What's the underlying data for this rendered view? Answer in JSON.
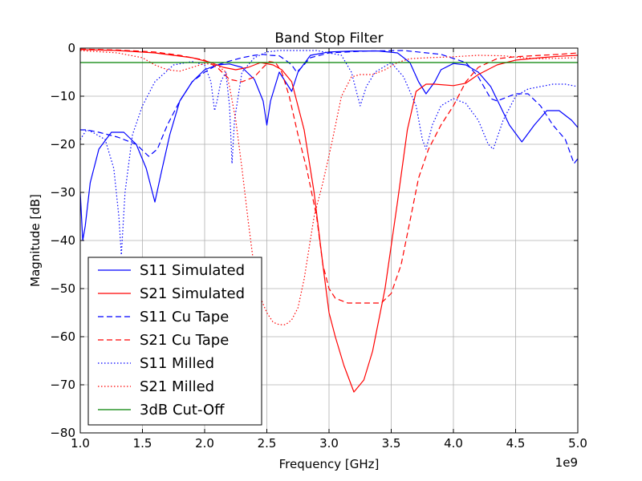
{
  "chart_data": {
    "type": "line",
    "title": "Band Stop Filter",
    "xlabel": "Frequency [GHz]",
    "ylabel": "Magnitude [dB]",
    "x_offset_label": "1e9",
    "xlim": [
      1.0,
      5.0
    ],
    "ylim": [
      -80,
      0
    ],
    "x_ticks": [
      1.0,
      1.5,
      2.0,
      2.5,
      3.0,
      3.5,
      4.0,
      4.5,
      5.0
    ],
    "x_tick_labels": [
      "1.0",
      "1.5",
      "2.0",
      "2.5",
      "3.0",
      "3.5",
      "4.0",
      "4.5",
      "5.0"
    ],
    "y_ticks": [
      0,
      -10,
      -20,
      -30,
      -40,
      -50,
      -60,
      -70,
      -80
    ],
    "y_tick_labels": [
      "0",
      "−10",
      "−20",
      "−30",
      "−40",
      "−50",
      "−60",
      "−70",
      "−80"
    ],
    "grid": true,
    "legend_position": "lower-left",
    "series": [
      {
        "name": "S11 Simulated",
        "color": "#0000ff",
        "dash": "solid",
        "points": [
          [
            1.0,
            -30
          ],
          [
            1.02,
            -40
          ],
          [
            1.04,
            -37
          ],
          [
            1.08,
            -28
          ],
          [
            1.15,
            -21
          ],
          [
            1.25,
            -17.5
          ],
          [
            1.35,
            -17.5
          ],
          [
            1.45,
            -20
          ],
          [
            1.53,
            -25
          ],
          [
            1.6,
            -32
          ],
          [
            1.65,
            -26
          ],
          [
            1.72,
            -18
          ],
          [
            1.8,
            -11
          ],
          [
            1.9,
            -7
          ],
          [
            2.0,
            -4.5
          ],
          [
            2.1,
            -3.5
          ],
          [
            2.2,
            -3.3
          ],
          [
            2.3,
            -4
          ],
          [
            2.4,
            -6.5
          ],
          [
            2.47,
            -11
          ],
          [
            2.5,
            -16
          ],
          [
            2.53,
            -11
          ],
          [
            2.6,
            -5
          ],
          [
            2.7,
            -9
          ],
          [
            2.75,
            -5
          ],
          [
            2.85,
            -1.5
          ],
          [
            3.0,
            -0.8
          ],
          [
            3.2,
            -0.6
          ],
          [
            3.4,
            -0.6
          ],
          [
            3.55,
            -1
          ],
          [
            3.65,
            -3
          ],
          [
            3.72,
            -7
          ],
          [
            3.78,
            -9.5
          ],
          [
            3.85,
            -7
          ],
          [
            3.9,
            -4.5
          ],
          [
            4.0,
            -3.2
          ],
          [
            4.1,
            -3.5
          ],
          [
            4.2,
            -5
          ],
          [
            4.3,
            -8
          ],
          [
            4.45,
            -16
          ],
          [
            4.55,
            -19.5
          ],
          [
            4.65,
            -16
          ],
          [
            4.75,
            -13
          ],
          [
            4.85,
            -13
          ],
          [
            4.95,
            -15
          ],
          [
            5.0,
            -16.5
          ]
        ]
      },
      {
        "name": "S21 Simulated",
        "color": "#ff0000",
        "dash": "solid",
        "points": [
          [
            1.0,
            -0.3
          ],
          [
            1.3,
            -0.5
          ],
          [
            1.6,
            -1
          ],
          [
            1.9,
            -2
          ],
          [
            2.05,
            -3
          ],
          [
            2.15,
            -4
          ],
          [
            2.25,
            -4.5
          ],
          [
            2.35,
            -4
          ],
          [
            2.45,
            -3
          ],
          [
            2.55,
            -3.5
          ],
          [
            2.62,
            -4.5
          ],
          [
            2.7,
            -7
          ],
          [
            2.8,
            -17
          ],
          [
            2.88,
            -30
          ],
          [
            2.95,
            -45
          ],
          [
            3.0,
            -55
          ],
          [
            3.05,
            -60
          ],
          [
            3.12,
            -66
          ],
          [
            3.2,
            -71.5
          ],
          [
            3.28,
            -69
          ],
          [
            3.35,
            -63
          ],
          [
            3.45,
            -50
          ],
          [
            3.55,
            -32
          ],
          [
            3.63,
            -17
          ],
          [
            3.7,
            -9
          ],
          [
            3.78,
            -7.5
          ],
          [
            3.85,
            -7.5
          ],
          [
            4.0,
            -7.8
          ],
          [
            4.1,
            -7.3
          ],
          [
            4.2,
            -5.5
          ],
          [
            4.35,
            -3.5
          ],
          [
            4.5,
            -2.5
          ],
          [
            4.7,
            -2
          ],
          [
            4.85,
            -1.7
          ],
          [
            5.0,
            -1.5
          ]
        ]
      },
      {
        "name": "S11 Cu Tape",
        "color": "#0000ff",
        "dash": "dashed",
        "points": [
          [
            1.0,
            -17
          ],
          [
            1.05,
            -17
          ],
          [
            1.15,
            -17.5
          ],
          [
            1.3,
            -18.5
          ],
          [
            1.45,
            -20
          ],
          [
            1.55,
            -22.5
          ],
          [
            1.62,
            -21
          ],
          [
            1.7,
            -16
          ],
          [
            1.8,
            -11
          ],
          [
            1.9,
            -7
          ],
          [
            2.0,
            -5
          ],
          [
            2.1,
            -3.5
          ],
          [
            2.2,
            -2.7
          ],
          [
            2.3,
            -2
          ],
          [
            2.4,
            -1.5
          ],
          [
            2.47,
            -1.3
          ],
          [
            2.53,
            -1.5
          ],
          [
            2.6,
            -1.6
          ],
          [
            2.65,
            -2.5
          ],
          [
            2.7,
            -3.5
          ],
          [
            2.74,
            -5
          ],
          [
            2.78,
            -4
          ],
          [
            2.85,
            -2
          ],
          [
            3.0,
            -1
          ],
          [
            3.3,
            -0.6
          ],
          [
            3.6,
            -0.5
          ],
          [
            3.9,
            -1.3
          ],
          [
            4.1,
            -3
          ],
          [
            4.2,
            -6
          ],
          [
            4.3,
            -10.5
          ],
          [
            4.35,
            -11
          ],
          [
            4.5,
            -9.5
          ],
          [
            4.6,
            -9.5
          ],
          [
            4.7,
            -12
          ],
          [
            4.8,
            -16
          ],
          [
            4.9,
            -19
          ],
          [
            4.97,
            -24
          ],
          [
            5.0,
            -23
          ]
        ]
      },
      {
        "name": "S21 Cu Tape",
        "color": "#ff0000",
        "dash": "dashed",
        "points": [
          [
            1.0,
            -0.2
          ],
          [
            1.3,
            -0.4
          ],
          [
            1.6,
            -0.8
          ],
          [
            1.8,
            -1.5
          ],
          [
            2.0,
            -2.5
          ],
          [
            2.1,
            -4
          ],
          [
            2.2,
            -6.5
          ],
          [
            2.3,
            -7
          ],
          [
            2.4,
            -6
          ],
          [
            2.47,
            -4
          ],
          [
            2.52,
            -2.8
          ],
          [
            2.57,
            -3
          ],
          [
            2.62,
            -5
          ],
          [
            2.68,
            -10
          ],
          [
            2.75,
            -18
          ],
          [
            2.82,
            -25
          ],
          [
            2.9,
            -35
          ],
          [
            2.95,
            -45
          ],
          [
            3.0,
            -50
          ],
          [
            3.05,
            -52
          ],
          [
            3.15,
            -53
          ],
          [
            3.25,
            -53
          ],
          [
            3.35,
            -53
          ],
          [
            3.42,
            -53
          ],
          [
            3.5,
            -51
          ],
          [
            3.58,
            -45
          ],
          [
            3.65,
            -36
          ],
          [
            3.72,
            -27
          ],
          [
            3.8,
            -21
          ],
          [
            3.9,
            -16
          ],
          [
            4.0,
            -12
          ],
          [
            4.1,
            -7
          ],
          [
            4.2,
            -4
          ],
          [
            4.35,
            -2.2
          ],
          [
            4.5,
            -1.8
          ],
          [
            4.7,
            -1.5
          ],
          [
            4.85,
            -1.3
          ],
          [
            5.0,
            -1
          ]
        ]
      },
      {
        "name": "S11 Milled",
        "color": "#0000ff",
        "dash": "dotted",
        "points": [
          [
            1.0,
            -19
          ],
          [
            1.05,
            -17
          ],
          [
            1.1,
            -17.5
          ],
          [
            1.2,
            -19
          ],
          [
            1.27,
            -25
          ],
          [
            1.31,
            -35
          ],
          [
            1.33,
            -43
          ],
          [
            1.36,
            -30
          ],
          [
            1.42,
            -18
          ],
          [
            1.5,
            -12
          ],
          [
            1.6,
            -7
          ],
          [
            1.75,
            -3.5
          ],
          [
            1.9,
            -2.8
          ],
          [
            2.0,
            -3.5
          ],
          [
            2.05,
            -7
          ],
          [
            2.08,
            -13
          ],
          [
            2.1,
            -11
          ],
          [
            2.13,
            -7
          ],
          [
            2.17,
            -5
          ],
          [
            2.2,
            -12
          ],
          [
            2.22,
            -24
          ],
          [
            2.24,
            -15
          ],
          [
            2.3,
            -5
          ],
          [
            2.4,
            -2
          ],
          [
            2.5,
            -0.8
          ],
          [
            2.6,
            -0.5
          ],
          [
            2.9,
            -0.5
          ],
          [
            3.1,
            -1.5
          ],
          [
            3.18,
            -5
          ],
          [
            3.22,
            -9
          ],
          [
            3.25,
            -12
          ],
          [
            3.3,
            -8
          ],
          [
            3.37,
            -5
          ],
          [
            3.5,
            -3
          ],
          [
            3.6,
            -6
          ],
          [
            3.7,
            -12
          ],
          [
            3.75,
            -19
          ],
          [
            3.78,
            -21
          ],
          [
            3.83,
            -16
          ],
          [
            3.9,
            -12
          ],
          [
            4.0,
            -10.5
          ],
          [
            4.1,
            -11.5
          ],
          [
            4.2,
            -15
          ],
          [
            4.28,
            -20
          ],
          [
            4.32,
            -21
          ],
          [
            4.4,
            -15
          ],
          [
            4.5,
            -10
          ],
          [
            4.6,
            -8.5
          ],
          [
            4.7,
            -8
          ],
          [
            4.8,
            -7.5
          ],
          [
            4.9,
            -7.5
          ],
          [
            5.0,
            -8
          ]
        ]
      },
      {
        "name": "S21 Milled",
        "color": "#ff0000",
        "dash": "dotted",
        "points": [
          [
            1.0,
            -0.5
          ],
          [
            1.3,
            -1
          ],
          [
            1.5,
            -2
          ],
          [
            1.6,
            -3.5
          ],
          [
            1.7,
            -4.5
          ],
          [
            1.8,
            -4.8
          ],
          [
            1.9,
            -4
          ],
          [
            2.0,
            -3.2
          ],
          [
            2.1,
            -3.5
          ],
          [
            2.17,
            -5
          ],
          [
            2.2,
            -8
          ],
          [
            2.25,
            -15
          ],
          [
            2.3,
            -25
          ],
          [
            2.35,
            -36
          ],
          [
            2.4,
            -46
          ],
          [
            2.45,
            -52
          ],
          [
            2.5,
            -55
          ],
          [
            2.55,
            -57
          ],
          [
            2.6,
            -57.5
          ],
          [
            2.65,
            -57.5
          ],
          [
            2.7,
            -56.5
          ],
          [
            2.75,
            -54
          ],
          [
            2.8,
            -48
          ],
          [
            2.88,
            -35
          ],
          [
            2.95,
            -28
          ],
          [
            3.02,
            -20
          ],
          [
            3.1,
            -10
          ],
          [
            3.18,
            -6
          ],
          [
            3.25,
            -5.5
          ],
          [
            3.35,
            -5.5
          ],
          [
            3.45,
            -4.5
          ],
          [
            3.55,
            -3
          ],
          [
            3.65,
            -2.2
          ],
          [
            3.8,
            -2
          ],
          [
            4.0,
            -1.8
          ],
          [
            4.2,
            -1.5
          ],
          [
            4.4,
            -1.6
          ],
          [
            4.55,
            -2
          ],
          [
            4.7,
            -2.2
          ],
          [
            4.85,
            -2.1
          ],
          [
            5.0,
            -2
          ]
        ]
      },
      {
        "name": "3dB Cut-Off",
        "color": "#008000",
        "dash": "solid",
        "points": [
          [
            1.0,
            -3
          ],
          [
            5.0,
            -3
          ]
        ]
      }
    ]
  }
}
